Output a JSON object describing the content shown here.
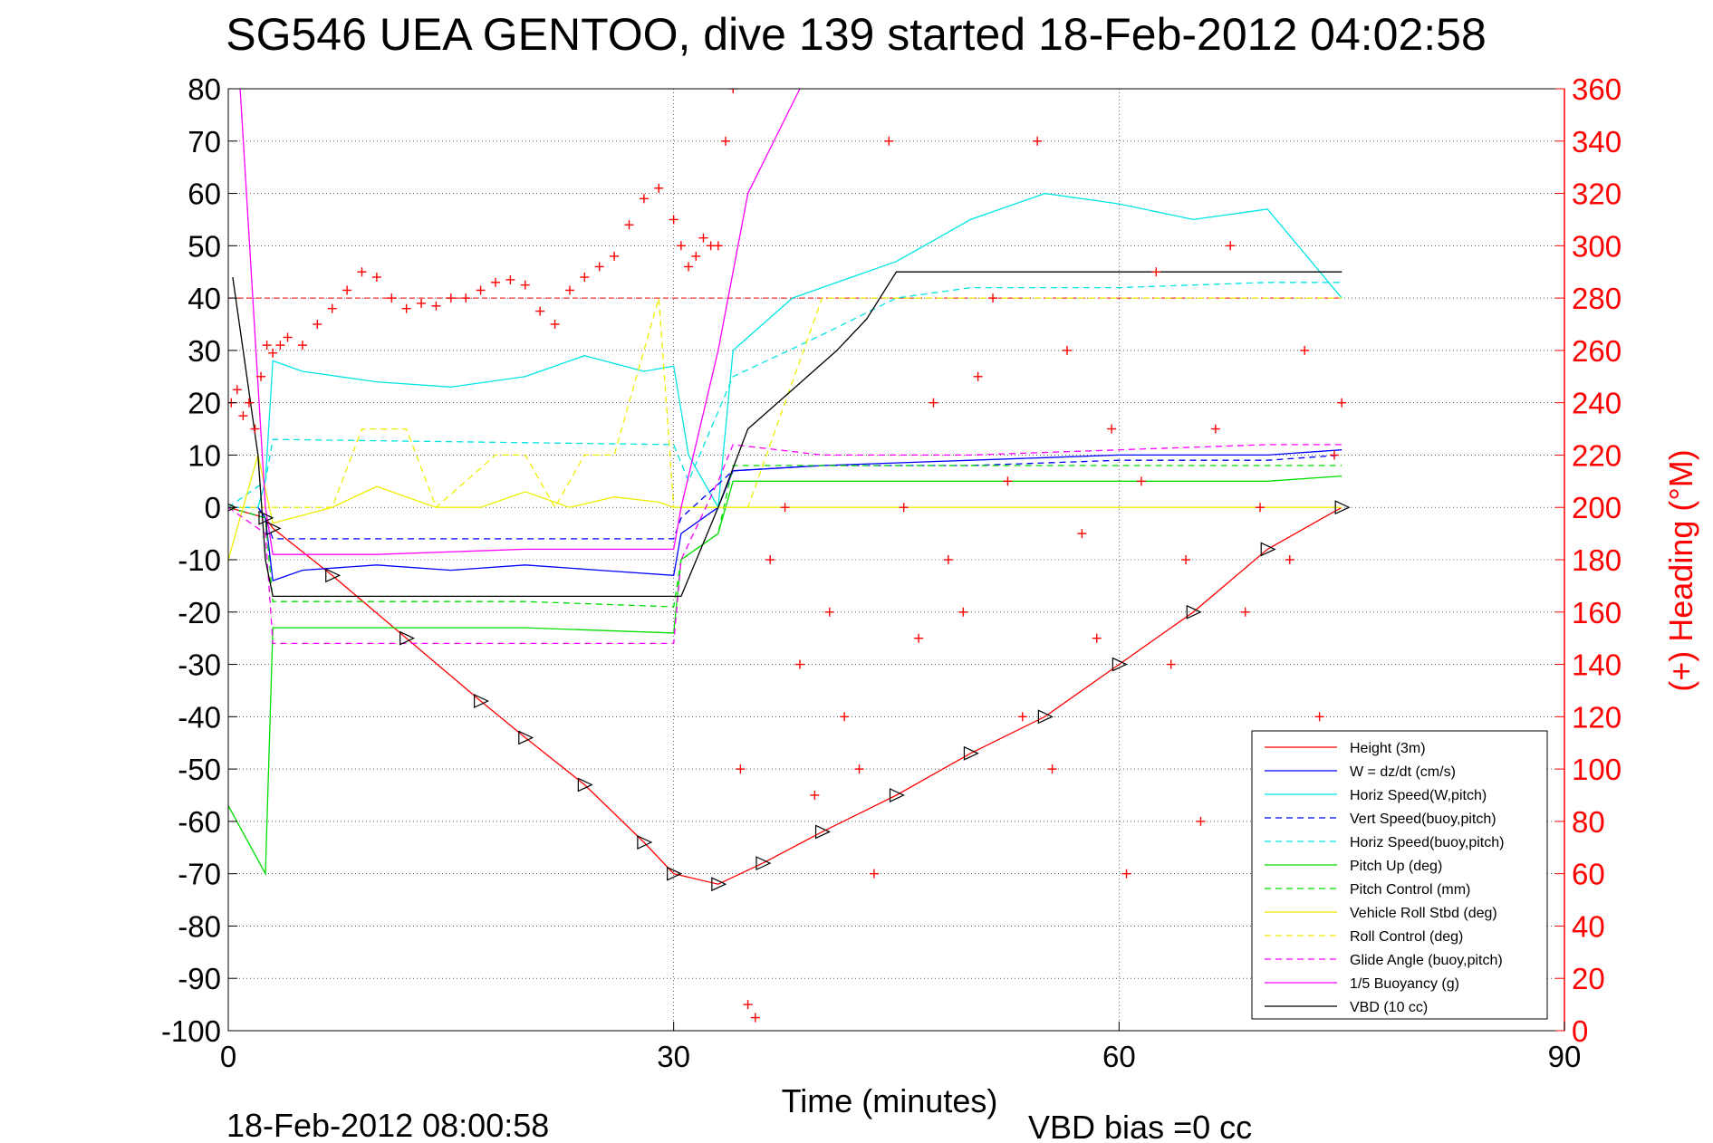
{
  "chart_data": {
    "type": "line",
    "title": "SG546 UEA GENTOO, dive 139 started 18-Feb-2012 04:02:58",
    "xlabel": "Time (minutes)",
    "ylabel_right": "(+) Heading (°M)",
    "footer_left": "18-Feb-2012 08:00:58",
    "footer_right": "VBD bias =0 cc",
    "xlim": [
      0,
      90
    ],
    "ylim_left": [
      -100,
      80
    ],
    "ylim_right": [
      0,
      360
    ],
    "xticks": [
      0,
      30,
      60,
      90
    ],
    "yticks_left": [
      80,
      70,
      60,
      50,
      40,
      30,
      20,
      10,
      0,
      -10,
      -20,
      -30,
      -40,
      -50,
      -60,
      -70,
      -80,
      -90,
      -100
    ],
    "yticks_right": [
      360,
      340,
      320,
      300,
      280,
      260,
      240,
      220,
      200,
      180,
      160,
      140,
      120,
      100,
      80,
      60,
      40,
      20,
      0
    ],
    "grid": true,
    "legend_position": "bottom-right",
    "colors": {
      "red": "#ff0000",
      "blue": "#0000ff",
      "cyan": "#00e5e5",
      "green": "#00dd00",
      "yellow": "#eeee00",
      "magenta": "#ff00ff",
      "black": "#000000"
    },
    "series": [
      {
        "name": "Height (3m)",
        "color": "#ff0000",
        "dash": false,
        "x": [
          0,
          2.5,
          3,
          7,
          12,
          17,
          20,
          24,
          28,
          30,
          33,
          36,
          40,
          45,
          50,
          55,
          60,
          65,
          70,
          75
        ],
        "y": [
          0,
          -2,
          -4,
          -13,
          -25,
          -37,
          -44,
          -53,
          -64,
          -70,
          -72,
          -68,
          -62,
          -55,
          -47,
          -40,
          -30,
          -20,
          -8,
          0
        ]
      },
      {
        "name": "W = dz/dt (cm/s)",
        "color": "#0000ff",
        "dash": false,
        "x": [
          0,
          2,
          2.5,
          3,
          5,
          10,
          15,
          20,
          25,
          30,
          30.5,
          33,
          34,
          40,
          50,
          60,
          70,
          75
        ],
        "y": [
          0,
          0,
          -2,
          -14,
          -12,
          -11,
          -12,
          -11,
          -12,
          -13,
          -5,
          0,
          7,
          8,
          9,
          10,
          10,
          11
        ]
      },
      {
        "name": "Horiz Speed(W,pitch)",
        "color": "#00e5e5",
        "dash": false,
        "x": [
          0,
          2,
          2.5,
          3,
          5,
          10,
          15,
          20,
          24,
          28,
          30,
          31,
          33,
          34,
          38,
          42,
          45,
          50,
          55,
          60,
          65,
          70,
          75
        ],
        "y": [
          0,
          0,
          5,
          28,
          26,
          24,
          23,
          25,
          29,
          26,
          27,
          10,
          0,
          30,
          40,
          44,
          47,
          55,
          60,
          58,
          55,
          57,
          40
        ]
      },
      {
        "name": "Vert Speed(buoy,pitch)",
        "color": "#0000ff",
        "dash": true,
        "x": [
          0,
          2.5,
          3,
          30,
          30.5,
          34,
          40,
          50,
          60,
          70,
          75
        ],
        "y": [
          0,
          -2,
          -6,
          -6,
          -2,
          7,
          8,
          8,
          9,
          9,
          10
        ]
      },
      {
        "name": "Horiz Speed(buoy,pitch)",
        "color": "#00e5e5",
        "dash": true,
        "x": [
          0,
          2.5,
          3,
          30,
          31,
          34,
          40,
          45,
          50,
          60,
          70,
          75
        ],
        "y": [
          0,
          5,
          13,
          12,
          5,
          25,
          33,
          40,
          42,
          42,
          43,
          43
        ]
      },
      {
        "name": "Pitch Up (deg)",
        "color": "#00dd00",
        "dash": false,
        "x": [
          0,
          2.5,
          3,
          10,
          20,
          30,
          30.5,
          33,
          34,
          40,
          50,
          60,
          70,
          75
        ],
        "y": [
          -57,
          -70,
          -23,
          -23,
          -23,
          -24,
          -10,
          -5,
          5,
          5,
          5,
          5,
          5,
          6
        ]
      },
      {
        "name": "Pitch Control (mm)",
        "color": "#00dd00",
        "dash": true,
        "x": [
          0,
          2.5,
          3,
          10,
          20,
          30,
          30.5,
          33,
          34,
          40,
          50,
          60,
          70,
          75
        ],
        "y": [
          0,
          -2,
          -18,
          -18,
          -18,
          -19,
          -10,
          -5,
          8,
          8,
          8,
          8,
          8,
          8
        ]
      },
      {
        "name": "Vehicle Roll Stbd (deg)",
        "color": "#eeee00",
        "dash": false,
        "x": [
          0,
          2,
          3,
          7,
          10,
          14,
          17,
          20,
          23,
          26,
          29,
          30,
          33,
          35,
          40,
          45,
          50,
          55,
          60,
          65,
          70,
          75
        ],
        "y": [
          -10,
          10,
          -3,
          0,
          4,
          0,
          0,
          3,
          0,
          2,
          1,
          0,
          0,
          0,
          0,
          0,
          0,
          0,
          0,
          0,
          0,
          0
        ]
      },
      {
        "name": "Roll Control (deg)",
        "color": "#eeee00",
        "dash": true,
        "x": [
          0,
          3,
          7,
          9,
          10,
          12,
          14,
          18,
          20,
          22,
          24,
          26,
          29,
          30,
          33,
          35,
          40,
          45,
          50,
          55,
          60,
          65,
          70,
          75
        ],
        "y": [
          0,
          0,
          0,
          15,
          15,
          15,
          0,
          10,
          10,
          0,
          10,
          10,
          40,
          0,
          0,
          0,
          40,
          40,
          40,
          40,
          40,
          40,
          40,
          40
        ]
      },
      {
        "name": "Glide Angle (buoy,pitch)",
        "color": "#ff00ff",
        "dash": true,
        "x": [
          0,
          2.5,
          3,
          10,
          20,
          30,
          30.5,
          33,
          34,
          40,
          50,
          60,
          70,
          75
        ],
        "y": [
          0,
          -5,
          -26,
          -26,
          -26,
          -26,
          -10,
          5,
          12,
          10,
          10,
          11,
          12,
          12
        ]
      },
      {
        "name": "1/5 Buoyancy (g)",
        "color": "#ff00ff",
        "dash": false,
        "x": [
          0.8,
          2.5,
          3,
          10,
          20,
          30,
          30.5,
          33,
          35,
          38.5
        ],
        "y": [
          80,
          0,
          -9,
          -9,
          -8,
          -8,
          0,
          30,
          60,
          80
        ]
      },
      {
        "name": "VBD (10 cc)",
        "color": "#000000",
        "dash": false,
        "x": [
          0.3,
          1,
          2,
          2.5,
          3,
          10,
          20,
          30.5,
          33,
          35,
          37,
          39,
          41,
          43,
          45,
          50,
          60,
          70,
          75
        ],
        "y": [
          44,
          30,
          10,
          -10,
          -17,
          -17,
          -17,
          -17,
          0,
          15,
          20,
          25,
          30,
          36,
          45,
          45,
          45,
          45,
          45
        ]
      }
    ],
    "heading_series": {
      "marker": "+",
      "color": "#ff0000",
      "axis": "right",
      "x": [
        0.2,
        0.6,
        1.0,
        1.4,
        1.8,
        2.2,
        2.6,
        3.0,
        3.5,
        4.0,
        5.0,
        6.0,
        7.0,
        8.0,
        9.0,
        10.0,
        11.0,
        12.0,
        13.0,
        14.0,
        15.0,
        16.0,
        17.0,
        18.0,
        19.0,
        20.0,
        21.0,
        22.0,
        23.0,
        24.0,
        25.0,
        26.0,
        27.0,
        28.0,
        29.0,
        30.0,
        30.5,
        31.0,
        31.5,
        32.0,
        32.5,
        33.0,
        33.5,
        34.0,
        34.5,
        35.0,
        35.5,
        36.5,
        37.5,
        38.5,
        39.5,
        40.5,
        41.5,
        42.5,
        43.5,
        44.5,
        45.5,
        46.5,
        47.5,
        48.5,
        49.5,
        50.5,
        51.5,
        52.5,
        53.5,
        54.5,
        55.5,
        56.5,
        57.5,
        58.5,
        59.5,
        60.5,
        61.5,
        62.5,
        63.5,
        64.5,
        65.5,
        66.5,
        67.5,
        68.5,
        69.5,
        70.5,
        71.5,
        72.5,
        73.5,
        74.5,
        75.0
      ],
      "y": [
        240,
        245,
        235,
        240,
        230,
        250,
        262,
        259,
        262,
        265,
        262,
        270,
        276,
        283,
        290,
        288,
        280,
        276,
        278,
        277,
        280,
        280,
        283,
        286,
        287,
        285,
        275,
        270,
        283,
        288,
        292,
        296,
        308,
        318,
        322,
        310,
        300,
        292,
        296,
        303,
        300,
        300,
        340,
        360,
        100,
        10,
        5,
        180,
        200,
        140,
        90,
        160,
        120,
        100,
        60,
        340,
        200,
        150,
        240,
        180,
        160,
        250,
        280,
        210,
        120,
        340,
        100,
        260,
        190,
        150,
        230,
        60,
        210,
        290,
        140,
        180,
        80,
        230,
        300,
        160,
        200,
        40,
        180,
        260,
        120,
        220,
        240
      ]
    }
  }
}
